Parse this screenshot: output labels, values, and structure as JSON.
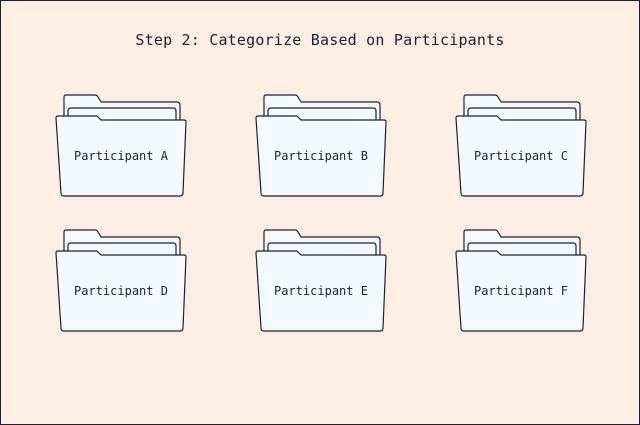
{
  "colors": {
    "background": "#fdeee4",
    "folder_fill": "#f4f9ff",
    "stroke": "#1c2035"
  },
  "title": "Step 2: Categorize Based on Participants",
  "folders": [
    {
      "label": "Participant A",
      "icon": "folder-icon"
    },
    {
      "label": "Participant B",
      "icon": "folder-icon"
    },
    {
      "label": "Participant C",
      "icon": "folder-icon"
    },
    {
      "label": "Participant D",
      "icon": "folder-icon"
    },
    {
      "label": "Participant E",
      "icon": "folder-icon"
    },
    {
      "label": "Participant F",
      "icon": "folder-icon"
    }
  ]
}
